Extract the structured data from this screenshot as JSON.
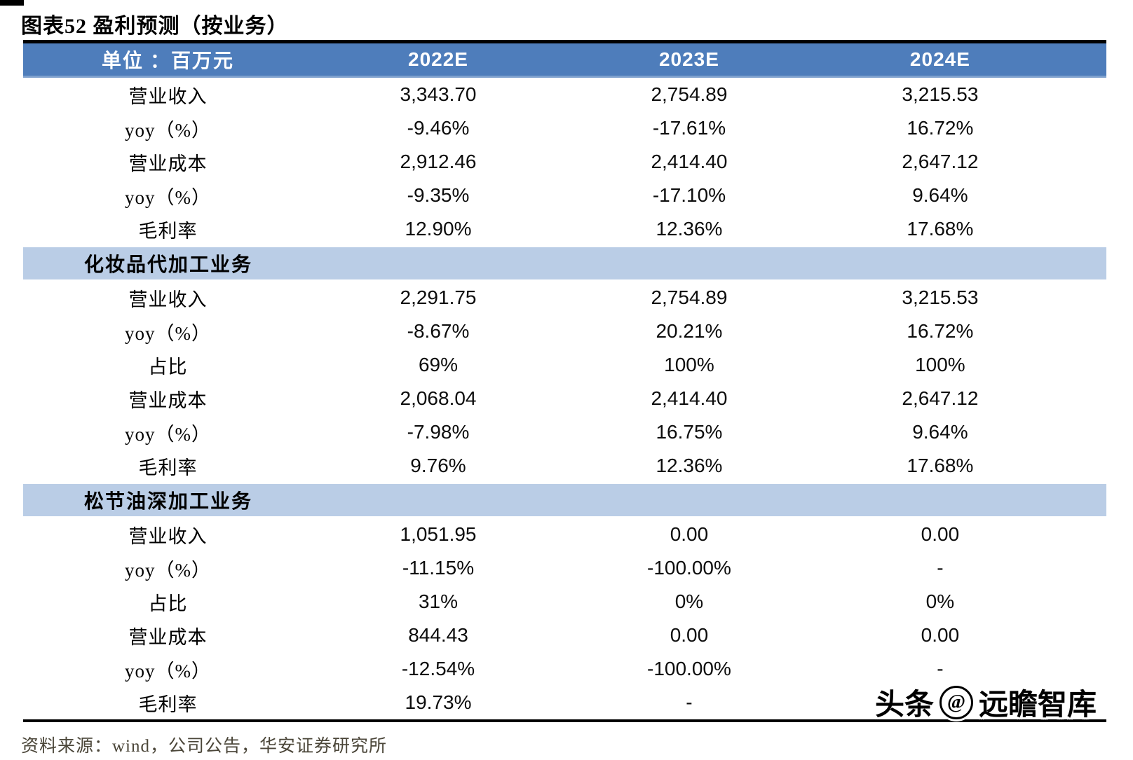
{
  "figure": {
    "title": "图表52  盈利预测（按业务）",
    "source": "资料来源：wind，公司公告，华安证券研究所",
    "watermark": {
      "prefix": "头条",
      "at": "@",
      "suffix": "远瞻智库"
    }
  },
  "colors": {
    "header_bg": "#4E7DBB",
    "header_edge": "#7FA1CD",
    "band_bg": "#BACDE6",
    "border": "#000000",
    "source_text": "#4B4639"
  },
  "table": {
    "unit_label": "单位 ：百万元",
    "columns": [
      "2022E",
      "2023E",
      "2024E"
    ],
    "sections": [
      {
        "name": "",
        "rows": [
          {
            "label": "营业收入",
            "values": [
              "3,343.70",
              "2,754.89",
              "3,215.53"
            ]
          },
          {
            "label": "yoy（%）",
            "values": [
              "-9.46%",
              "-17.61%",
              "16.72%"
            ]
          },
          {
            "label": "营业成本",
            "values": [
              "2,912.46",
              "2,414.40",
              "2,647.12"
            ]
          },
          {
            "label": "yoy（%）",
            "values": [
              "-9.35%",
              "-17.10%",
              "9.64%"
            ]
          },
          {
            "label": "毛利率",
            "values": [
              "12.90%",
              "12.36%",
              "17.68%"
            ]
          }
        ]
      },
      {
        "name": "化妆品代加工业务",
        "rows": [
          {
            "label": "营业收入",
            "values": [
              "2,291.75",
              "2,754.89",
              "3,215.53"
            ]
          },
          {
            "label": "yoy（%）",
            "values": [
              "-8.67%",
              "20.21%",
              "16.72%"
            ]
          },
          {
            "label": "占比",
            "values": [
              "69%",
              "100%",
              "100%"
            ]
          },
          {
            "label": "营业成本",
            "values": [
              "2,068.04",
              "2,414.40",
              "2,647.12"
            ]
          },
          {
            "label": "yoy（%）",
            "values": [
              "-7.98%",
              "16.75%",
              "9.64%"
            ]
          },
          {
            "label": "毛利率",
            "values": [
              "9.76%",
              "12.36%",
              "17.68%"
            ]
          }
        ]
      },
      {
        "name": "松节油深加工业务",
        "rows": [
          {
            "label": "营业收入",
            "values": [
              "1,051.95",
              "0.00",
              "0.00"
            ]
          },
          {
            "label": "yoy（%）",
            "values": [
              "-11.15%",
              "-100.00%",
              "-"
            ]
          },
          {
            "label": "占比",
            "values": [
              "31%",
              "0%",
              "0%"
            ]
          },
          {
            "label": "营业成本",
            "values": [
              "844.43",
              "0.00",
              "0.00"
            ]
          },
          {
            "label": "yoy（%）",
            "values": [
              "-12.54%",
              "-100.00%",
              "-"
            ]
          },
          {
            "label": "毛利率",
            "values": [
              "19.73%",
              "-",
              ""
            ]
          }
        ]
      }
    ]
  }
}
